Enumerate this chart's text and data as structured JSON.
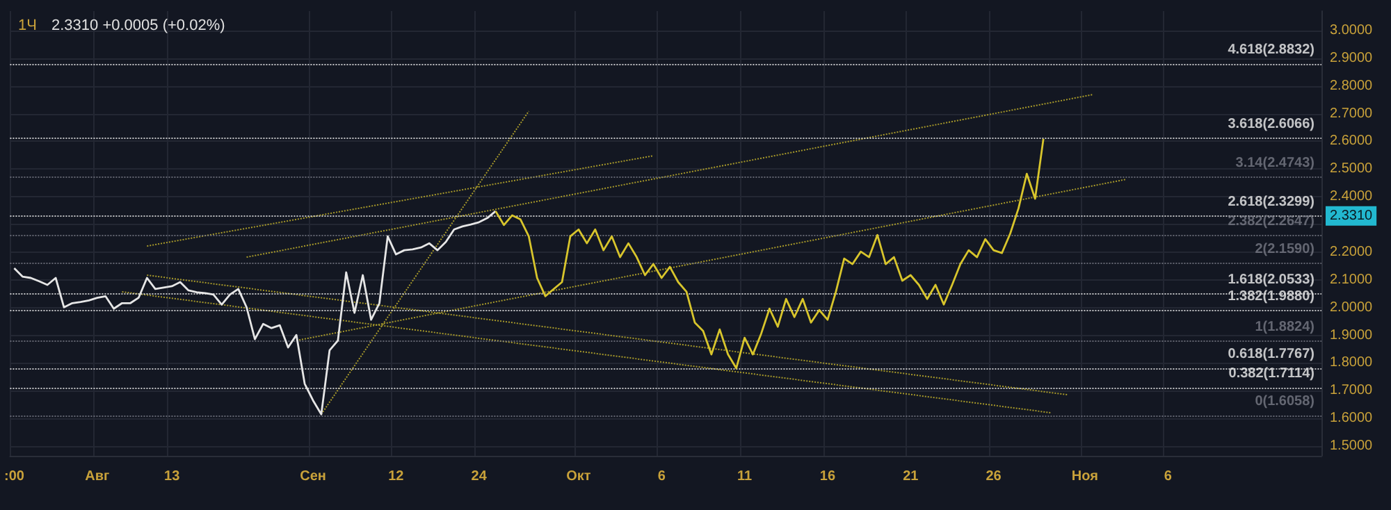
{
  "chart_data": {
    "type": "line",
    "title": "1Ч",
    "subtitle": "2.3310 +0.0005 (+0.02%)",
    "categories": [
      ":00",
      null,
      null,
      null,
      null,
      null,
      null,
      null,
      null,
      null,
      "Авг",
      null,
      null,
      null,
      null,
      null,
      null,
      null,
      null,
      "13",
      null,
      null,
      null,
      null,
      null,
      null,
      null,
      null,
      null,
      null,
      null,
      null,
      null,
      null,
      null,
      null,
      "Сен",
      null,
      null,
      null,
      null,
      null,
      null,
      null,
      null,
      null,
      "12",
      null,
      null,
      null,
      null,
      null,
      null,
      null,
      null,
      null,
      "24",
      null,
      null,
      null,
      null,
      null,
      null,
      null,
      null,
      null,
      null,
      null,
      "Окт",
      null,
      null,
      null,
      null,
      null,
      null,
      null,
      null,
      null,
      "6",
      null,
      null,
      null,
      null,
      null,
      null,
      null,
      null,
      null,
      "11",
      null,
      null,
      null,
      null,
      null,
      null,
      null,
      null,
      null,
      "16",
      null,
      null,
      null,
      null,
      null,
      null,
      null,
      null,
      null,
      "21",
      null,
      null,
      null,
      null,
      null,
      null,
      null,
      null,
      null,
      "26",
      null,
      null,
      null,
      null,
      null,
      null,
      null,
      null,
      null,
      null,
      "Ноя",
      null,
      null,
      null,
      null,
      null,
      null,
      null,
      null,
      null,
      "6",
      null,
      null,
      null,
      null,
      null,
      null,
      null,
      null,
      null,
      null,
      null,
      null,
      null,
      null,
      null,
      null,
      null,
      null
    ],
    "ylim": [
      1.465,
      3.07
    ],
    "yticks": [
      {
        "value": 1.5,
        "label": "1.5000"
      },
      {
        "value": 1.6,
        "label": "1.6000"
      },
      {
        "value": 1.7,
        "label": "1.7000"
      },
      {
        "value": 1.8,
        "label": "1.8000"
      },
      {
        "value": 1.9,
        "label": "1.9000"
      },
      {
        "value": 2.0,
        "label": "2.0000"
      },
      {
        "value": 2.1,
        "label": "2.1000"
      },
      {
        "value": 2.2,
        "label": "2.2000"
      },
      {
        "value": 2.3,
        "label": null
      },
      {
        "value": 2.4,
        "label": "2.4000"
      },
      {
        "value": 2.5,
        "label": "2.5000"
      },
      {
        "value": 2.6,
        "label": "2.6000"
      },
      {
        "value": 2.7,
        "label": "2.7000"
      },
      {
        "value": 2.8,
        "label": "2.8000"
      },
      {
        "value": 2.9,
        "label": "2.9000"
      },
      {
        "value": 3.0,
        "label": "3.0000"
      }
    ],
    "grid": true,
    "marker": "none",
    "series": [
      {
        "color": "#e6e6e6",
        "line_style": "solid",
        "values": [
          2.142,
          2.112,
          2.107,
          2.095,
          2.082,
          2.107,
          2.001,
          2.016,
          2.02,
          2.026,
          2.035,
          2.041,
          1.996,
          2.016,
          2.016,
          2.036,
          2.107,
          2.067,
          2.072,
          2.077,
          2.092,
          2.062,
          2.055,
          2.052,
          2.047,
          2.011,
          2.047,
          2.067,
          2.001,
          1.886,
          1.941,
          1.926,
          1.936,
          1.856,
          1.901,
          1.725,
          1.665,
          1.615,
          1.846,
          1.881,
          2.127,
          1.981,
          2.117,
          1.956,
          2.016,
          2.257,
          2.192,
          2.207,
          2.21,
          2.217,
          2.232,
          2.207,
          2.237,
          2.282,
          2.293,
          2.3,
          2.308,
          2.323,
          2.348,
          null,
          null,
          null,
          null,
          null,
          null,
          null,
          null,
          null,
          null,
          null,
          null,
          null,
          null,
          null,
          null,
          null,
          null,
          null,
          null,
          null,
          null,
          null,
          null,
          null,
          null,
          null,
          null,
          null,
          null,
          null,
          null,
          null,
          null,
          null,
          null,
          null,
          null,
          null,
          null,
          null,
          null,
          null,
          null,
          null,
          null,
          null,
          null,
          null,
          null,
          null,
          null,
          null,
          null,
          null,
          null,
          null,
          null,
          null,
          null,
          null,
          null,
          null,
          null,
          null,
          null,
          null,
          null,
          null,
          null,
          null,
          null,
          null,
          null,
          null,
          null,
          null,
          null,
          null,
          null,
          null,
          null,
          null,
          null,
          null,
          null,
          null,
          null,
          null,
          null,
          null,
          null,
          null,
          null,
          null,
          null,
          null,
          null,
          null
        ]
      },
      {
        "color": "#d8c52c",
        "line_style": "solid",
        "values": [
          null,
          null,
          null,
          null,
          null,
          null,
          null,
          null,
          null,
          null,
          null,
          null,
          null,
          null,
          null,
          null,
          null,
          null,
          null,
          null,
          null,
          null,
          null,
          null,
          null,
          null,
          null,
          null,
          null,
          null,
          null,
          null,
          null,
          null,
          null,
          null,
          null,
          null,
          null,
          null,
          null,
          null,
          null,
          null,
          null,
          null,
          null,
          null,
          null,
          null,
          null,
          null,
          null,
          null,
          null,
          null,
          null,
          null,
          2.348,
          2.298,
          2.333,
          2.318,
          2.257,
          2.107,
          2.041,
          2.067,
          2.092,
          2.257,
          2.282,
          2.232,
          2.282,
          2.207,
          2.257,
          2.182,
          2.232,
          2.182,
          2.117,
          2.157,
          2.107,
          2.147,
          2.092,
          2.057,
          1.946,
          1.916,
          1.831,
          1.921,
          1.831,
          1.781,
          1.891,
          1.831,
          1.906,
          1.996,
          1.931,
          2.031,
          1.966,
          2.031,
          1.946,
          1.991,
          1.956,
          2.057,
          2.177,
          2.157,
          2.202,
          2.182,
          2.262,
          2.157,
          2.182,
          2.097,
          2.117,
          2.082,
          2.031,
          2.082,
          2.011,
          2.082,
          2.157,
          2.207,
          2.182,
          2.247,
          2.207,
          2.197,
          2.267,
          2.358,
          2.483,
          2.393,
          2.609,
          null,
          null,
          null,
          null,
          null,
          null,
          null,
          null,
          null,
          null,
          null,
          null,
          null,
          null,
          null,
          null,
          null,
          null,
          null,
          null,
          null,
          null,
          null,
          null,
          null,
          null,
          null,
          null,
          null,
          null,
          null,
          null,
          null
        ]
      },
      {
        "color": "#a89a2a",
        "line_style": "dotted",
        "values": [
          null,
          null,
          null,
          null,
          null,
          null,
          null,
          null,
          null,
          null,
          null,
          null,
          null,
          null,
          null,
          null,
          2.222,
          null,
          null,
          null,
          null,
          null,
          null,
          null,
          null,
          null,
          null,
          null,
          null,
          null,
          null,
          null,
          null,
          null,
          null,
          null,
          null,
          null,
          null,
          null,
          null,
          null,
          null,
          null,
          null,
          null,
          null,
          null,
          null,
          null,
          null,
          null,
          null,
          null,
          null,
          null,
          null,
          null,
          null,
          null,
          null,
          null,
          null,
          null,
          null,
          null,
          null,
          null,
          null,
          null,
          null,
          null,
          null,
          null,
          null,
          null,
          null,
          2.548,
          null,
          null,
          null,
          null,
          null,
          null,
          null,
          null,
          null,
          null,
          null,
          null,
          null,
          null,
          null,
          null,
          null,
          null,
          null,
          null,
          null,
          null,
          null,
          null,
          null,
          null,
          null,
          null,
          null,
          null,
          null,
          null,
          null,
          null,
          null,
          null,
          null,
          null,
          null,
          null,
          null,
          null,
          null,
          null,
          null,
          null,
          null,
          null,
          null,
          null,
          null,
          null,
          null,
          null,
          null,
          null,
          null,
          null,
          null,
          null,
          null,
          null,
          null,
          null,
          null,
          null,
          null,
          null,
          null,
          null,
          null,
          null,
          null,
          null,
          null,
          null,
          null,
          null,
          null,
          null
        ]
      },
      {
        "color": "#a89a2a",
        "line_style": "dotted",
        "values": [
          null,
          null,
          null,
          null,
          null,
          null,
          null,
          null,
          null,
          null,
          null,
          null,
          null,
          null,
          null,
          null,
          null,
          null,
          null,
          null,
          null,
          null,
          null,
          null,
          null,
          null,
          null,
          null,
          2.182,
          null,
          null,
          null,
          null,
          null,
          null,
          null,
          null,
          null,
          null,
          null,
          null,
          null,
          null,
          null,
          null,
          null,
          null,
          null,
          null,
          null,
          null,
          null,
          null,
          null,
          null,
          null,
          null,
          null,
          null,
          null,
          null,
          null,
          null,
          null,
          null,
          null,
          null,
          null,
          null,
          null,
          null,
          null,
          null,
          null,
          null,
          null,
          null,
          null,
          null,
          null,
          null,
          null,
          null,
          null,
          null,
          null,
          null,
          null,
          null,
          null,
          null,
          null,
          null,
          null,
          null,
          null,
          null,
          null,
          null,
          null,
          null,
          null,
          null,
          null,
          null,
          null,
          null,
          null,
          null,
          null,
          null,
          null,
          null,
          null,
          null,
          null,
          null,
          null,
          null,
          null,
          null,
          null,
          null,
          null,
          null,
          null,
          null,
          null,
          null,
          null,
          2.769,
          null,
          null,
          null,
          null,
          null,
          null,
          null,
          null,
          null,
          null,
          null,
          null,
          null,
          null,
          null,
          null,
          null,
          null,
          null,
          null,
          null,
          null,
          null,
          null,
          null,
          null,
          null
        ]
      },
      {
        "color": "#a89a2a",
        "line_style": "dotted",
        "values": [
          null,
          null,
          null,
          null,
          null,
          null,
          null,
          null,
          null,
          null,
          null,
          null,
          null,
          null,
          null,
          null,
          null,
          null,
          null,
          null,
          null,
          null,
          null,
          null,
          null,
          null,
          null,
          null,
          null,
          null,
          null,
          null,
          null,
          null,
          1.881,
          null,
          null,
          null,
          null,
          null,
          null,
          null,
          null,
          null,
          null,
          null,
          null,
          null,
          null,
          null,
          null,
          null,
          null,
          null,
          null,
          null,
          null,
          null,
          null,
          null,
          null,
          null,
          null,
          null,
          null,
          null,
          null,
          null,
          null,
          null,
          null,
          null,
          null,
          null,
          null,
          null,
          null,
          null,
          null,
          null,
          null,
          null,
          null,
          null,
          null,
          null,
          null,
          null,
          null,
          null,
          null,
          null,
          null,
          null,
          null,
          null,
          null,
          null,
          null,
          null,
          null,
          null,
          null,
          null,
          null,
          null,
          null,
          null,
          null,
          null,
          null,
          null,
          null,
          null,
          null,
          null,
          null,
          null,
          null,
          null,
          null,
          null,
          null,
          null,
          null,
          null,
          null,
          null,
          null,
          null,
          null,
          null,
          null,
          null,
          2.463,
          null,
          null,
          null,
          null,
          null,
          null,
          null,
          null,
          null,
          null,
          null,
          null,
          null,
          null,
          null,
          null,
          null,
          null,
          null,
          null,
          null,
          null,
          null
        ]
      },
      {
        "color": "#a89a2a",
        "line_style": "dotted",
        "values": [
          null,
          null,
          null,
          null,
          null,
          null,
          null,
          null,
          null,
          null,
          null,
          null,
          null,
          null,
          null,
          null,
          null,
          null,
          null,
          null,
          null,
          null,
          null,
          null,
          null,
          null,
          null,
          null,
          null,
          null,
          null,
          null,
          null,
          null,
          null,
          null,
          null,
          1.615,
          null,
          null,
          null,
          null,
          null,
          null,
          null,
          null,
          null,
          null,
          null,
          null,
          null,
          null,
          null,
          null,
          null,
          null,
          null,
          null,
          null,
          null,
          null,
          null,
          2.709,
          null,
          null,
          null,
          null,
          null,
          null,
          null,
          null,
          null,
          null,
          null,
          null,
          null,
          null,
          null,
          null,
          null,
          null,
          null,
          null,
          null,
          null,
          null,
          null,
          null,
          null,
          null,
          null,
          null,
          null,
          null,
          null,
          null,
          null,
          null,
          null,
          null,
          null,
          null,
          null,
          null,
          null,
          null,
          null,
          null,
          null,
          null,
          null,
          null,
          null,
          null,
          null,
          null,
          null,
          null,
          null,
          null,
          null,
          null,
          null,
          null,
          null,
          null,
          null,
          null,
          null,
          null,
          null,
          null,
          null,
          null,
          null,
          null,
          null,
          null,
          null,
          null,
          null,
          null,
          null,
          null,
          null,
          null,
          null,
          null,
          null,
          null,
          null,
          null,
          null,
          null,
          null,
          null,
          null,
          null
        ]
      },
      {
        "color": "#a89a2a",
        "line_style": "dotted",
        "values": [
          null,
          null,
          null,
          null,
          null,
          null,
          null,
          null,
          null,
          null,
          null,
          null,
          null,
          null,
          null,
          null,
          2.117,
          null,
          null,
          null,
          null,
          null,
          null,
          null,
          null,
          null,
          null,
          null,
          null,
          null,
          null,
          null,
          null,
          null,
          null,
          null,
          null,
          null,
          null,
          null,
          null,
          null,
          null,
          null,
          null,
          null,
          null,
          null,
          null,
          null,
          null,
          null,
          null,
          null,
          null,
          null,
          null,
          null,
          null,
          null,
          null,
          null,
          null,
          null,
          null,
          null,
          null,
          null,
          null,
          null,
          null,
          null,
          null,
          null,
          null,
          null,
          null,
          null,
          null,
          null,
          null,
          null,
          null,
          null,
          null,
          null,
          null,
          null,
          null,
          null,
          null,
          null,
          null,
          null,
          null,
          null,
          null,
          null,
          null,
          null,
          null,
          null,
          null,
          null,
          null,
          null,
          null,
          null,
          null,
          null,
          null,
          null,
          null,
          null,
          null,
          null,
          null,
          null,
          null,
          null,
          null,
          null,
          null,
          null,
          null,
          null,
          null,
          1.685,
          null,
          null,
          null,
          null,
          null,
          null,
          null,
          null,
          null,
          null,
          null,
          null,
          null,
          null,
          null,
          null,
          null,
          null,
          null,
          null,
          null,
          null,
          null,
          null,
          null,
          null,
          null,
          null,
          null,
          null
        ]
      },
      {
        "color": "#a89a2a",
        "line_style": "dotted",
        "values": [
          null,
          null,
          null,
          null,
          null,
          null,
          null,
          null,
          null,
          null,
          null,
          null,
          null,
          2.057,
          null,
          null,
          null,
          null,
          null,
          null,
          null,
          null,
          null,
          null,
          null,
          null,
          null,
          null,
          null,
          null,
          null,
          null,
          null,
          null,
          null,
          null,
          null,
          null,
          null,
          null,
          null,
          null,
          null,
          null,
          null,
          null,
          null,
          null,
          null,
          null,
          null,
          null,
          null,
          null,
          null,
          null,
          null,
          null,
          null,
          null,
          null,
          null,
          null,
          null,
          null,
          null,
          null,
          null,
          null,
          null,
          null,
          null,
          null,
          null,
          null,
          null,
          null,
          null,
          null,
          null,
          null,
          null,
          null,
          null,
          null,
          null,
          null,
          null,
          null,
          null,
          null,
          null,
          null,
          null,
          null,
          null,
          null,
          null,
          null,
          null,
          null,
          null,
          null,
          null,
          null,
          null,
          null,
          null,
          null,
          null,
          null,
          null,
          null,
          null,
          null,
          null,
          null,
          null,
          null,
          null,
          null,
          null,
          null,
          null,
          null,
          1.62,
          null,
          null,
          null,
          null,
          null,
          null,
          null,
          null,
          null,
          null,
          null,
          null,
          null,
          null,
          null,
          null,
          null,
          null,
          null,
          null,
          null,
          null,
          null,
          null,
          null,
          null,
          null,
          null,
          null,
          null,
          null,
          null
        ]
      }
    ],
    "ref_lines": [
      {
        "axis": "y",
        "value": 2.8832,
        "label": "4.618(2.8832)",
        "color": "#f0f0f0",
        "line_style": "dotted"
      },
      {
        "axis": "y",
        "value": 2.6066,
        "label": "3.618(2.6066)",
        "color": "#f0f0f0",
        "line_style": "dotted"
      },
      {
        "axis": "y",
        "value": 2.4743,
        "label": "3.14(2.4743)",
        "color": "#787b86",
        "line_style": "dotted"
      },
      {
        "axis": "y",
        "value": 2.3299,
        "label": "2.618(2.3299)",
        "color": "#f0f0f0",
        "line_style": "dotted"
      },
      {
        "axis": "y",
        "value": 2.2647,
        "label": "2.382(2.2647)",
        "color": "#787b86",
        "line_style": "dotted"
      },
      {
        "axis": "y",
        "value": 2.159,
        "label": "2(2.1590)",
        "color": "#787b86",
        "line_style": "dotted"
      },
      {
        "axis": "y",
        "value": 2.0533,
        "label": "1.618(2.0533)",
        "color": "#f0f0f0",
        "line_style": "dotted"
      },
      {
        "axis": "y",
        "value": 1.988,
        "label": "1.382(1.9880)",
        "color": "#f0f0f0",
        "line_style": "dotted"
      },
      {
        "axis": "y",
        "value": 1.8824,
        "label": "1(1.8824)",
        "color": "#787b86",
        "line_style": "dotted"
      },
      {
        "axis": "y",
        "value": 1.7767,
        "label": "0.618(1.7767)",
        "color": "#f0f0f0",
        "line_style": "dotted"
      },
      {
        "axis": "y",
        "value": 1.7114,
        "label": "0.382(1.7114)",
        "color": "#f0f0f0",
        "line_style": "dotted"
      },
      {
        "axis": "y",
        "value": 1.6058,
        "label": "0(1.6058)",
        "color": "#787b86",
        "line_style": "dotted"
      }
    ],
    "annotations": [
      {
        "text": "2.3310",
        "y": 2.331
      }
    ]
  }
}
